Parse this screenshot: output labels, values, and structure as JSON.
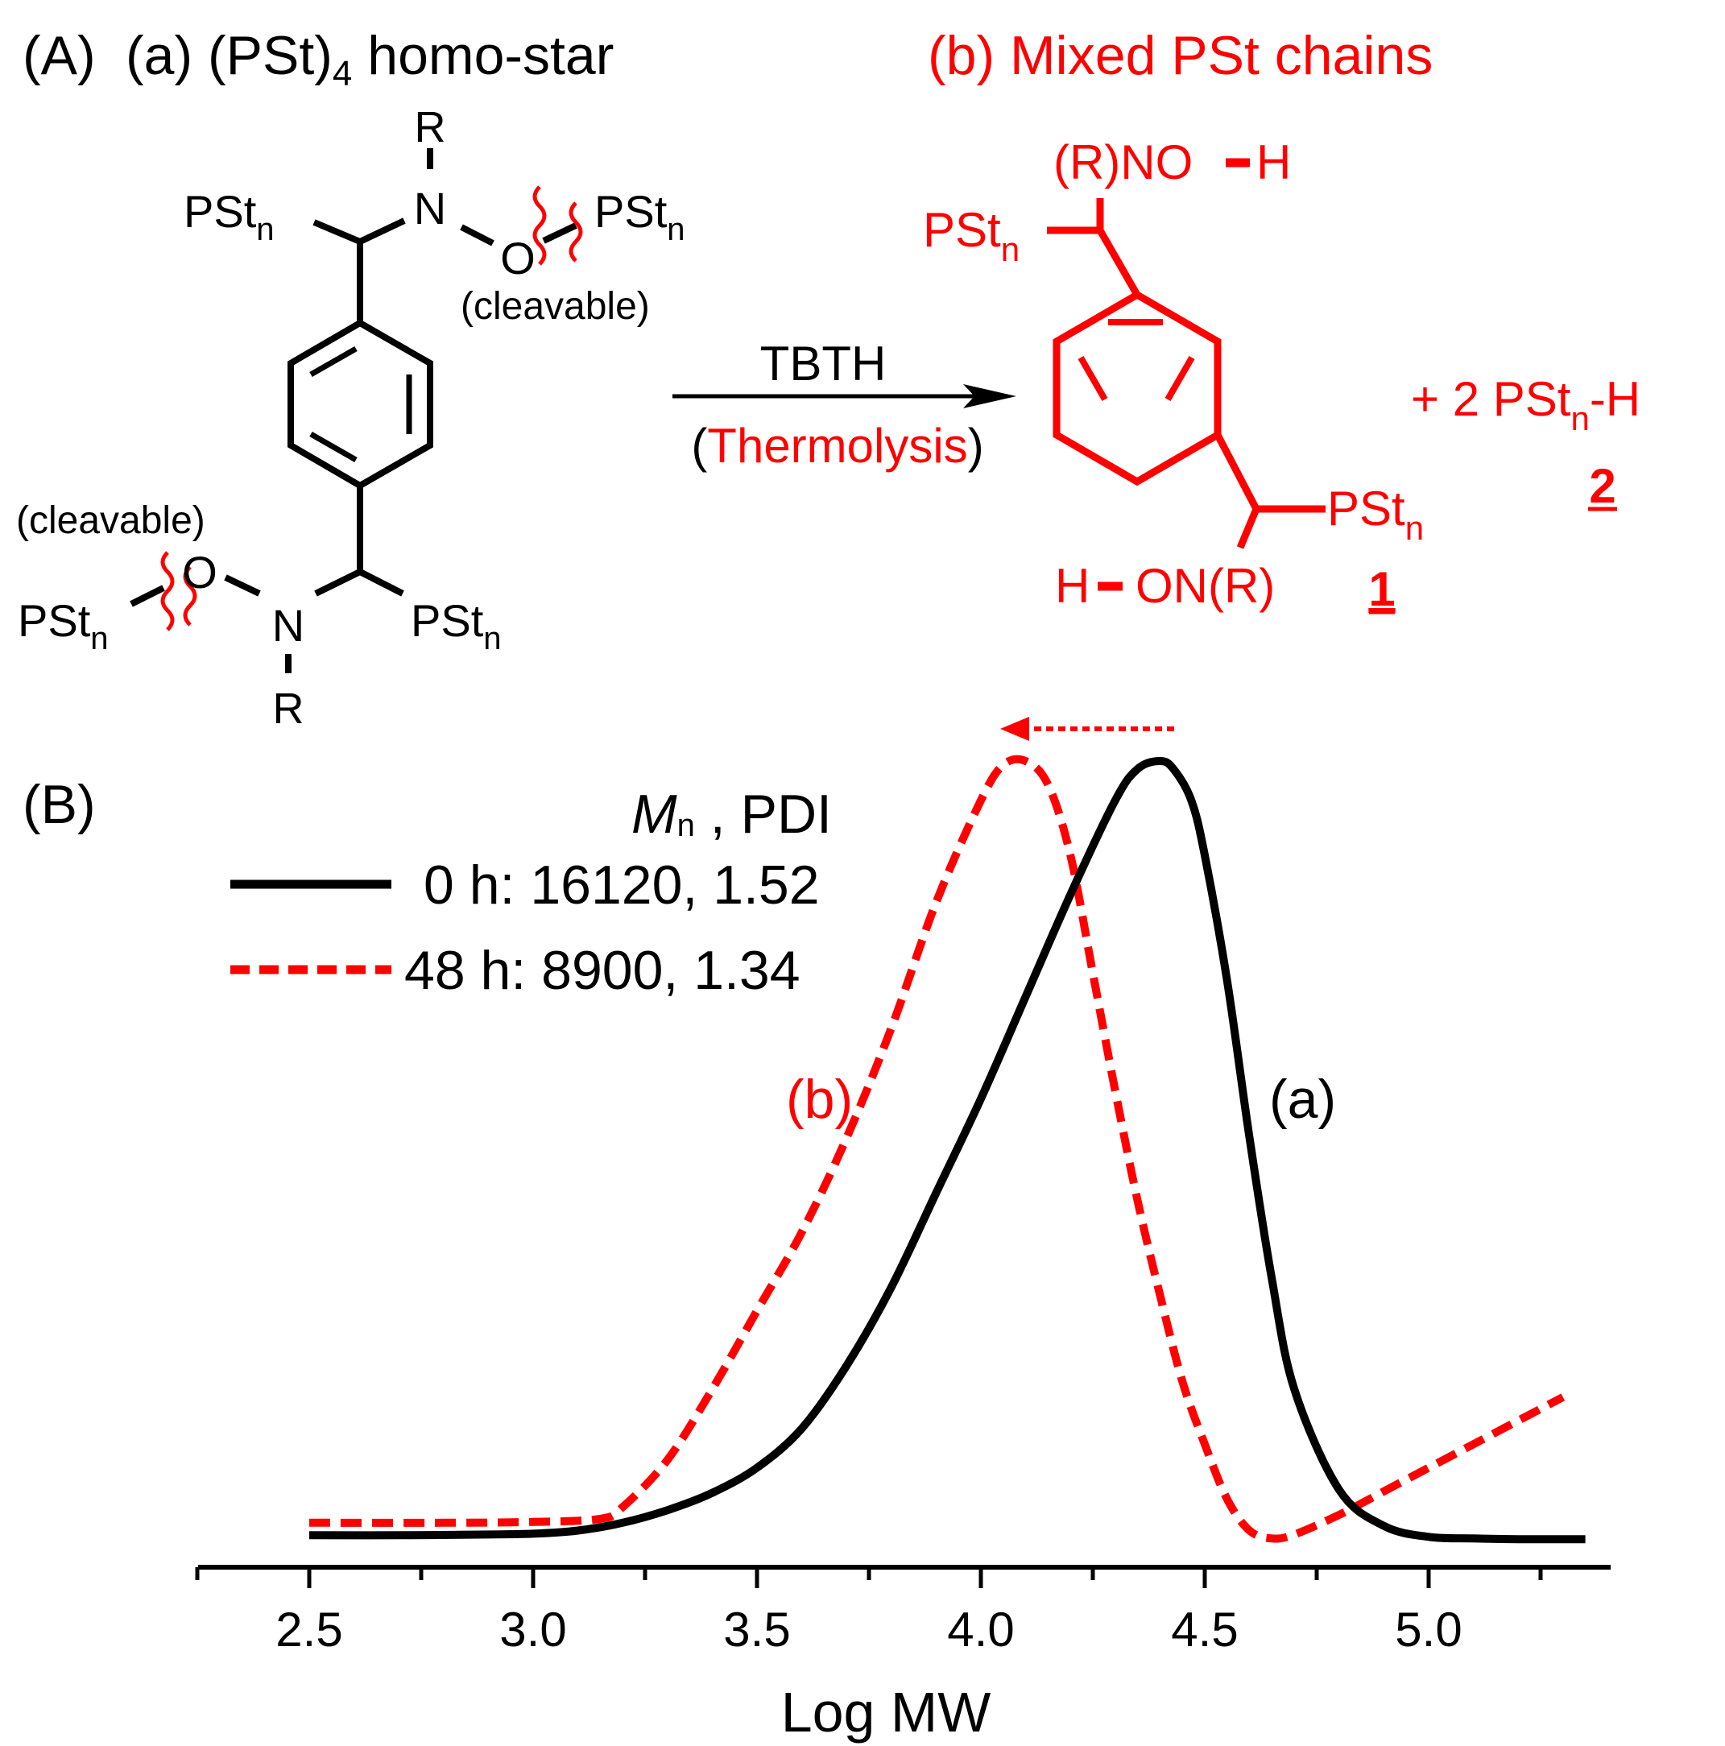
{
  "colors": {
    "black": "#000000",
    "red": "#ff0000"
  },
  "panel_a": {
    "panel_label": "(A)",
    "title_a_prefix": "(a) (PSt)",
    "title_a_sub": "4",
    "title_a_suffix": " homo-star",
    "title_b": "(b) Mixed PSt chains",
    "pst": "PSt",
    "n": "n",
    "r": "R",
    "n_atom": "N",
    "o_atom": "O",
    "cleavable": "(cleavable)",
    "reagent": "TBTH",
    "condition_open": "(",
    "condition": "Thermolysis",
    "condition_close": ")",
    "hydroxylamine_top": "(R)NO",
    "h_atom": "H",
    "hydroxylamine_bottom": "ON(R)",
    "product1_label": "1",
    "plus_coef": "+  2 PSt",
    "suffix_h": "-H",
    "product2_label": "2"
  },
  "panel_b": {
    "panel_label": "(B)",
    "legend_header_mn": "M",
    "legend_header_sub": "n",
    "legend_header_rest": " , PDI",
    "legend_0h": "0 h: 16120, 1.52",
    "legend_48h": "48 h:  8900, 1.34",
    "curve_label_a": "(a)",
    "curve_label_b": "(b)"
  },
  "chart_data": {
    "type": "line",
    "xlabel": "Log MW",
    "ylabel": "",
    "xlim": [
      2.26,
      5.4
    ],
    "ylim": [
      0,
      1
    ],
    "x_ticks": [
      "2.5",
      "3.0",
      "3.5",
      "4.0",
      "4.5",
      "5.0"
    ],
    "legend_placement": "top-left",
    "grid": false,
    "series": [
      {
        "name": "0 h: 16120, 1.52",
        "color": "#000000",
        "dash": "solid",
        "x": [
          2.5,
          2.7,
          2.9,
          3.0,
          3.1,
          3.2,
          3.3,
          3.4,
          3.5,
          3.6,
          3.7,
          3.8,
          3.9,
          4.0,
          4.1,
          4.2,
          4.3,
          4.35,
          4.4,
          4.43,
          4.47,
          4.5,
          4.55,
          4.6,
          4.65,
          4.7,
          4.8,
          4.9,
          5.0,
          5.1,
          5.2,
          5.35
        ],
        "y": [
          0.014,
          0.014,
          0.015,
          0.016,
          0.02,
          0.03,
          0.046,
          0.068,
          0.1,
          0.15,
          0.23,
          0.33,
          0.45,
          0.57,
          0.7,
          0.83,
          0.95,
          0.99,
          1.0,
          0.99,
          0.95,
          0.88,
          0.72,
          0.52,
          0.34,
          0.2,
          0.072,
          0.026,
          0.012,
          0.01,
          0.009,
          0.009
        ]
      },
      {
        "name": "48 h:  8900, 1.34",
        "color": "#ff0000",
        "dash": "dashed",
        "x": [
          2.5,
          2.8,
          3.0,
          3.15,
          3.2,
          3.3,
          3.4,
          3.5,
          3.6,
          3.7,
          3.8,
          3.9,
          4.0,
          4.05,
          4.1,
          4.15,
          4.2,
          4.25,
          4.3,
          4.35,
          4.4,
          4.45,
          4.5,
          4.55,
          4.6,
          4.65,
          4.7,
          4.8,
          4.9,
          5.0,
          5.1,
          5.2,
          5.3
        ],
        "y": [
          0.03,
          0.03,
          0.031,
          0.035,
          0.05,
          0.11,
          0.2,
          0.3,
          0.4,
          0.52,
          0.66,
          0.82,
          0.95,
          0.995,
          1.0,
          0.97,
          0.88,
          0.73,
          0.58,
          0.44,
          0.32,
          0.21,
          0.13,
          0.06,
          0.02,
          0.01,
          0.015,
          0.04,
          0.07,
          0.1,
          0.13,
          0.16,
          0.19
        ]
      }
    ]
  }
}
